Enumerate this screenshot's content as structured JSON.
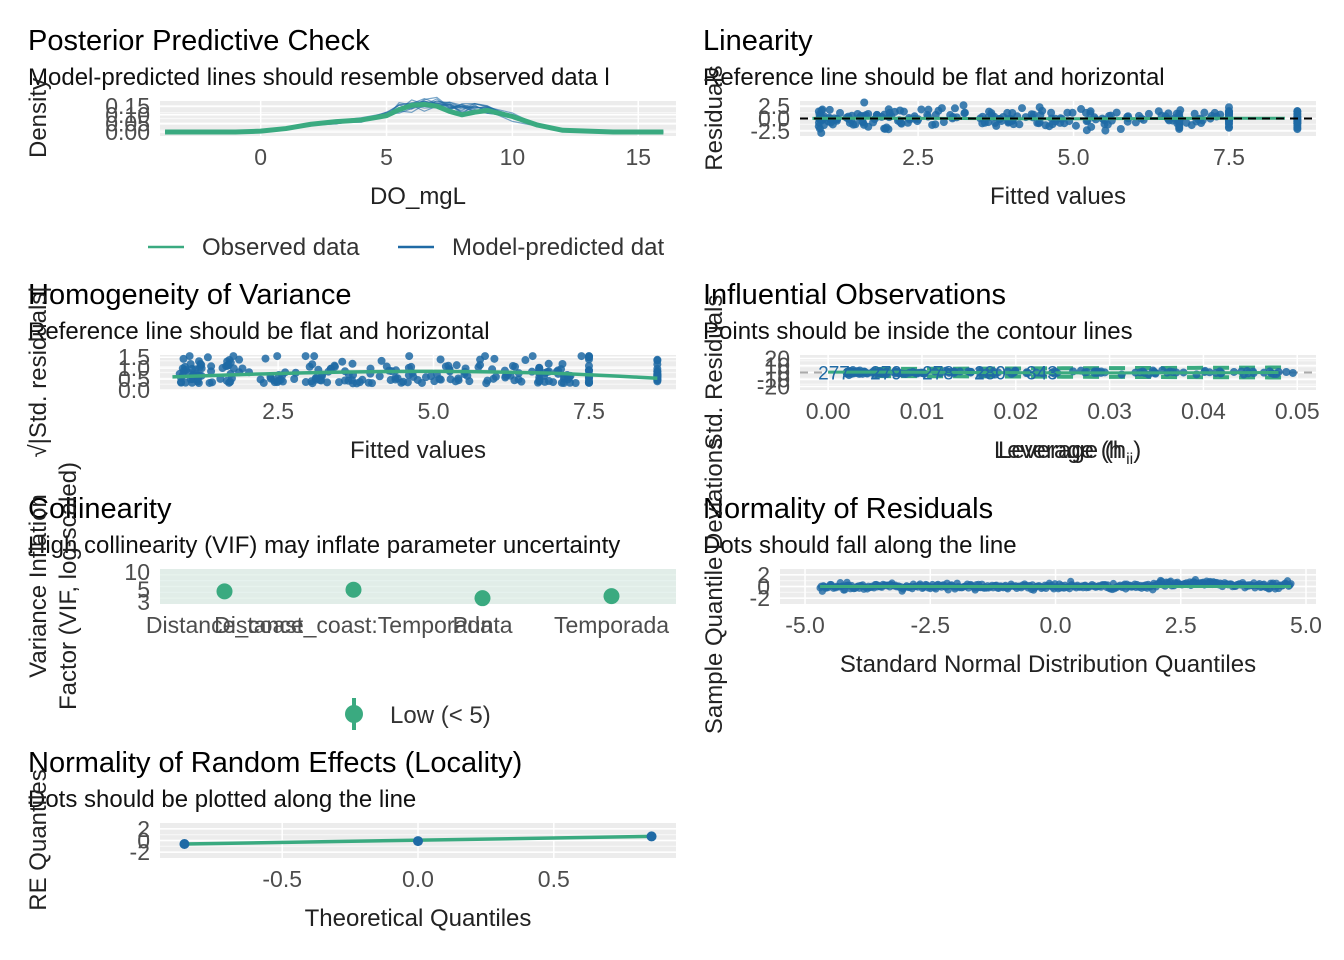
{
  "colors": {
    "green": "#3aaa80",
    "blue": "#1f6aa5",
    "panel": "#ececec",
    "grid": "#f8f8f8",
    "ref": "#000000",
    "contour": "#bfbfbf"
  },
  "chart_data": [
    {
      "id": "ppc",
      "type": "line",
      "title": "Posterior Predictive Check",
      "subtitle": "Model-predicted lines should resemble observed data l",
      "xlabel": "DO_mgL",
      "ylabel": "Density",
      "xlim": [
        -4,
        16.5
      ],
      "ylim": [
        0,
        0.18
      ],
      "xticks": [
        0,
        5,
        10,
        15
      ],
      "yticks": [
        0,
        0.05,
        0.1,
        0.15
      ],
      "yticklabels": [
        "0.00",
        "0.05",
        "0.10",
        "0.15"
      ],
      "legend": [
        "Observed data",
        "Model-predicted dat"
      ],
      "series": [
        {
          "name": "Observed data",
          "x": [
            -3.8,
            -1,
            0,
            1,
            2,
            3,
            4,
            5,
            5.5,
            6,
            6.5,
            7,
            7.5,
            8,
            8.5,
            9,
            10,
            11,
            12,
            14,
            16
          ],
          "y": [
            0,
            0,
            0.005,
            0.02,
            0.045,
            0.06,
            0.07,
            0.095,
            0.13,
            0.155,
            0.16,
            0.15,
            0.12,
            0.1,
            0.115,
            0.125,
            0.09,
            0.04,
            0.01,
            0,
            0
          ]
        },
        {
          "name": "Model-predicted dat",
          "x": [
            -3.8,
            -1,
            0,
            1,
            2,
            3,
            4,
            5,
            5.5,
            6,
            6.5,
            7,
            7.5,
            8,
            8.5,
            9,
            10,
            11,
            12,
            14,
            16
          ],
          "y": [
            0,
            0,
            0.005,
            0.02,
            0.04,
            0.055,
            0.07,
            0.1,
            0.135,
            0.15,
            0.16,
            0.16,
            0.155,
            0.145,
            0.14,
            0.13,
            0.09,
            0.04,
            0.012,
            0,
            0
          ]
        }
      ]
    },
    {
      "id": "linearity",
      "type": "scatter",
      "title": "Linearity",
      "subtitle": "Reference line should be flat and horizontal",
      "xlabel": "Fitted values",
      "ylabel": "Residuals",
      "xlim": [
        0.6,
        8.9
      ],
      "ylim": [
        -3.5,
        3.5
      ],
      "xticks": [
        2.5,
        5.0,
        7.5
      ],
      "xticklabels": [
        "2.5",
        "5.0",
        "7.5"
      ],
      "yticks": [
        -2.5,
        0,
        2.5
      ],
      "yticklabels": [
        "-2.5",
        "0.0",
        "2.5"
      ]
    },
    {
      "id": "homogeneity",
      "type": "scatter",
      "title": "Homogeneity of Variance",
      "subtitle": "Reference line should be flat and horizontal",
      "xlabel": "Fitted values",
      "ylabel": "√|Std. residuals|",
      "xlim": [
        0.6,
        8.9
      ],
      "ylim": [
        0,
        1.6
      ],
      "xticks": [
        2.5,
        5.0,
        7.5
      ],
      "xticklabels": [
        "2.5",
        "5.0",
        "7.5"
      ],
      "yticks": [
        0,
        0.5,
        1.0,
        1.5
      ],
      "yticklabels": [
        "0.0",
        "0.5",
        "1.0",
        "1.5"
      ]
    },
    {
      "id": "influential",
      "type": "scatter",
      "title": "Influential Observations",
      "subtitle": "Points should be inside the contour lines",
      "xlabel": "Leverage (h",
      "xlabel_sub": "ii",
      "xlabel_close": ")",
      "ylabel": "Std. Residuals",
      "xlim": [
        -0.003,
        0.052
      ],
      "ylim": [
        -25,
        25
      ],
      "xticks": [
        0,
        0.01,
        0.02,
        0.03,
        0.04,
        0.05
      ],
      "xticklabels": [
        "0.00",
        "0.01",
        "0.02",
        "0.03",
        "0.04",
        "0.05"
      ],
      "yticks": [
        -20,
        -10,
        0,
        10,
        20
      ],
      "yticklabels": [
        "-20",
        "-10",
        "0",
        "10",
        "20"
      ],
      "labels": [
        "277",
        "279",
        "278",
        "280",
        "343"
      ]
    },
    {
      "id": "collinearity",
      "type": "scatter",
      "title": "Collinearity",
      "subtitle": "High collinearity (VIF) may inflate parameter uncertainty",
      "xlabel": "",
      "ylabel": "Variance Inflation\nFactor (VIF, log-scaled)",
      "categories": [
        "Distance_coast",
        "Distance_coast:Temporada",
        "Punta",
        "Temporada"
      ],
      "values": [
        4.6,
        4.9,
        3.5,
        3.8
      ],
      "yticks": [
        3,
        5,
        10
      ],
      "yticklabels": [
        "3",
        "5",
        "10"
      ],
      "legend": [
        "Low (< 5)"
      ]
    },
    {
      "id": "normality",
      "type": "scatter",
      "title": "Normality of Residuals",
      "subtitle": "Dots should fall along the line",
      "xlabel": "Standard Normal Distribution Quantiles",
      "ylabel": "Sample Quantile Deviations",
      "xlim": [
        -5.5,
        5.2
      ],
      "ylim": [
        -3,
        3
      ],
      "xticks": [
        -5,
        -2.5,
        0,
        2.5,
        5
      ],
      "xticklabels": [
        "-5.0",
        "-2.5",
        "0.0",
        "2.5",
        "5.0"
      ],
      "yticks": [
        -2,
        0,
        2
      ],
      "yticklabels": [
        "-2",
        "0",
        "2"
      ]
    },
    {
      "id": "re",
      "type": "scatter",
      "title": "Normality of Random Effects (Locality)",
      "subtitle": "Dots should be plotted along the line",
      "xlabel": "Theoretical Quantiles",
      "ylabel": "RE Quantiles",
      "xlim": [
        -0.95,
        0.95
      ],
      "ylim": [
        -3,
        3
      ],
      "xticks": [
        -0.5,
        0,
        0.5
      ],
      "xticklabels": [
        "-0.5",
        "0.0",
        "0.5"
      ],
      "yticks": [
        -2,
        0,
        2
      ],
      "yticklabels": [
        "-2",
        "0",
        "2"
      ],
      "x": [
        -0.86,
        0,
        0.86
      ],
      "y": [
        -0.6,
        -0.1,
        0.7
      ]
    }
  ]
}
